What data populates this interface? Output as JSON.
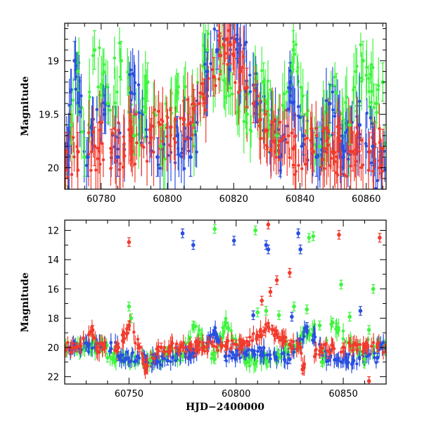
{
  "chart_data": [
    {
      "type": "scatter",
      "title": "",
      "xlabel": "",
      "ylabel": "Magnitude",
      "xlim": [
        60769,
        60866
      ],
      "ylim": [
        20.2,
        18.65
      ],
      "y_inverted": true,
      "grid": false,
      "error_bars": true,
      "x_ticks": [
        60780,
        60800,
        60820,
        60840,
        60860
      ],
      "y_ticks": [
        19,
        19.5,
        20
      ],
      "series": [
        {
          "color": "#3ef53e",
          "points": [
            [
              60771,
              19.6
            ],
            [
              60773,
              19.1
            ],
            [
              60775,
              19.9
            ],
            [
              60778,
              18.9
            ],
            [
              60782,
              19.4
            ],
            [
              60786,
              19.0
            ],
            [
              60790,
              19.7
            ],
            [
              60794,
              19.2
            ],
            [
              60798,
              19.8
            ],
            [
              60803,
              19.3
            ],
            [
              60808,
              19.6
            ],
            [
              60812,
              18.9
            ],
            [
              60816,
              19.1
            ],
            [
              60824,
              19.5
            ],
            [
              60829,
              19.2
            ],
            [
              60833,
              19.7
            ],
            [
              60838,
              18.9
            ],
            [
              60842,
              19.5
            ],
            [
              60846,
              19.8
            ],
            [
              60851,
              19.3
            ],
            [
              60855,
              19.6
            ],
            [
              60859,
              19.0
            ],
            [
              60863,
              19.4
            ],
            [
              60865,
              19.2
            ]
          ]
        },
        {
          "color": "#2a4fe0",
          "points": [
            [
              60770,
              19.8
            ],
            [
              60772,
              19.0
            ],
            [
              60776,
              19.9
            ],
            [
              60781,
              19.5
            ],
            [
              60785,
              19.9
            ],
            [
              60789,
              19.3
            ],
            [
              60797,
              19.9
            ],
            [
              60803,
              19.7
            ],
            [
              60807,
              19.9
            ],
            [
              60812,
              19.1
            ],
            [
              60815,
              18.9
            ],
            [
              60821,
              18.8
            ],
            [
              60827,
              19.4
            ],
            [
              60834,
              19.9
            ],
            [
              60837,
              19.2
            ],
            [
              60841,
              19.7
            ],
            [
              60845,
              19.9
            ],
            [
              60849,
              19.4
            ],
            [
              60853,
              19.9
            ],
            [
              60858,
              19.6
            ],
            [
              60862,
              19.8
            ]
          ]
        },
        {
          "color": "#f23a2c",
          "points": [
            [
              60769.5,
              19.85
            ],
            [
              60773,
              19.85
            ],
            [
              60778,
              19.8
            ],
            [
              60783,
              19.82
            ],
            [
              60789,
              19.75
            ],
            [
              60795,
              19.72
            ],
            [
              60801,
              19.62
            ],
            [
              60805,
              19.55
            ],
            [
              60808,
              19.45
            ],
            [
              60811,
              19.35
            ],
            [
              60814,
              19.15
            ],
            [
              60816,
              18.95
            ],
            [
              60817,
              18.85
            ],
            [
              60818,
              18.8
            ],
            [
              60819,
              18.85
            ],
            [
              60820,
              18.95
            ],
            [
              60822,
              19.1
            ],
            [
              60824,
              19.25
            ],
            [
              60826,
              19.4
            ],
            [
              60828,
              19.55
            ],
            [
              60830,
              19.65
            ],
            [
              60834,
              19.75
            ],
            [
              60838,
              19.82
            ],
            [
              60844,
              19.85
            ],
            [
              60850,
              19.85
            ],
            [
              60856,
              19.85
            ],
            [
              60861,
              19.85
            ],
            [
              60865,
              19.82
            ]
          ]
        }
      ]
    },
    {
      "type": "scatter",
      "title": "",
      "xlabel": "HJD−2400000",
      "ylabel": "Magnitude",
      "xlim": [
        60720,
        60870
      ],
      "ylim": [
        22.5,
        11.3
      ],
      "y_inverted": true,
      "grid": false,
      "error_bars": true,
      "x_ticks": [
        60750,
        60800,
        60850
      ],
      "y_ticks": [
        12,
        14,
        16,
        18,
        20,
        22
      ],
      "series": [
        {
          "color": "#3ef53e",
          "points": [
            [
              60790,
              11.9
            ],
            [
              60809,
              12.0
            ],
            [
              60834,
              12.5
            ],
            [
              60836,
              12.4
            ],
            [
              60849,
              15.7
            ],
            [
              60864,
              16.0
            ],
            [
              60750,
              17.2
            ],
            [
              60751,
              18.0
            ],
            [
              60780,
              18.5
            ],
            [
              60795,
              18.3
            ],
            [
              60810,
              17.6
            ],
            [
              60814,
              17.5
            ],
            [
              60820,
              17.8
            ],
            [
              60827,
              17.2
            ],
            [
              60833,
              17.4
            ],
            [
              60839,
              18.5
            ],
            [
              60845,
              18.3
            ],
            [
              60853,
              17.9
            ],
            [
              60862,
              18.8
            ],
            [
              60740,
              20.7
            ],
            [
              60760,
              20.9
            ],
            [
              60775,
              20.6
            ],
            [
              60790,
              20.8
            ],
            [
              60805,
              21.0
            ],
            [
              60820,
              20.5
            ],
            [
              60840,
              21.0
            ],
            [
              60860,
              20.8
            ]
          ]
        },
        {
          "color": "#2a4fe0",
          "points": [
            [
              60775,
              12.2
            ],
            [
              60780,
              13.0
            ],
            [
              60799,
              12.7
            ],
            [
              60814,
              13.0
            ],
            [
              60815,
              13.3
            ],
            [
              60829,
              12.2
            ],
            [
              60830,
              13.3
            ],
            [
              60790,
              18.9
            ],
            [
              60808,
              17.8
            ],
            [
              60826,
              17.9
            ],
            [
              60833,
              18.6
            ],
            [
              60858,
              17.5
            ],
            [
              60745,
              20.6
            ],
            [
              60768,
              20.9
            ],
            [
              60780,
              20.4
            ],
            [
              60795,
              20.6
            ],
            [
              60812,
              20.3
            ],
            [
              60825,
              20.8
            ],
            [
              60843,
              20.9
            ],
            [
              60866,
              20.7
            ]
          ]
        },
        {
          "color": "#f23a2c",
          "points": [
            [
              60750,
              12.8
            ],
            [
              60815,
              11.6
            ],
            [
              60848,
              12.3
            ],
            [
              60867,
              12.5
            ],
            [
              60825,
              14.9
            ],
            [
              60819,
              15.4
            ],
            [
              60816,
              16.2
            ],
            [
              60812,
              16.8
            ],
            [
              60750,
              18.5
            ],
            [
              60733,
              18.8
            ],
            [
              60758,
              21.5
            ],
            [
              60831,
              21.5
            ],
            [
              60862,
              22.3
            ],
            [
              60725,
              20.0
            ],
            [
              60735,
              20.0
            ],
            [
              60745,
              20.0
            ],
            [
              60755,
              20.0
            ],
            [
              60765,
              20.0
            ],
            [
              60775,
              19.95
            ],
            [
              60785,
              19.95
            ],
            [
              60795,
              19.9
            ],
            [
              60800,
              19.8
            ],
            [
              60805,
              19.6
            ],
            [
              60810,
              19.2
            ],
            [
              60813,
              18.9
            ],
            [
              60815,
              18.6
            ],
            [
              60817,
              18.8
            ],
            [
              60819,
              19.1
            ],
            [
              60822,
              19.5
            ],
            [
              60825,
              19.8
            ],
            [
              60830,
              20.0
            ],
            [
              60840,
              20.05
            ],
            [
              60850,
              20.0
            ],
            [
              60860,
              20.0
            ],
            [
              60866,
              20.0
            ]
          ]
        }
      ]
    }
  ]
}
